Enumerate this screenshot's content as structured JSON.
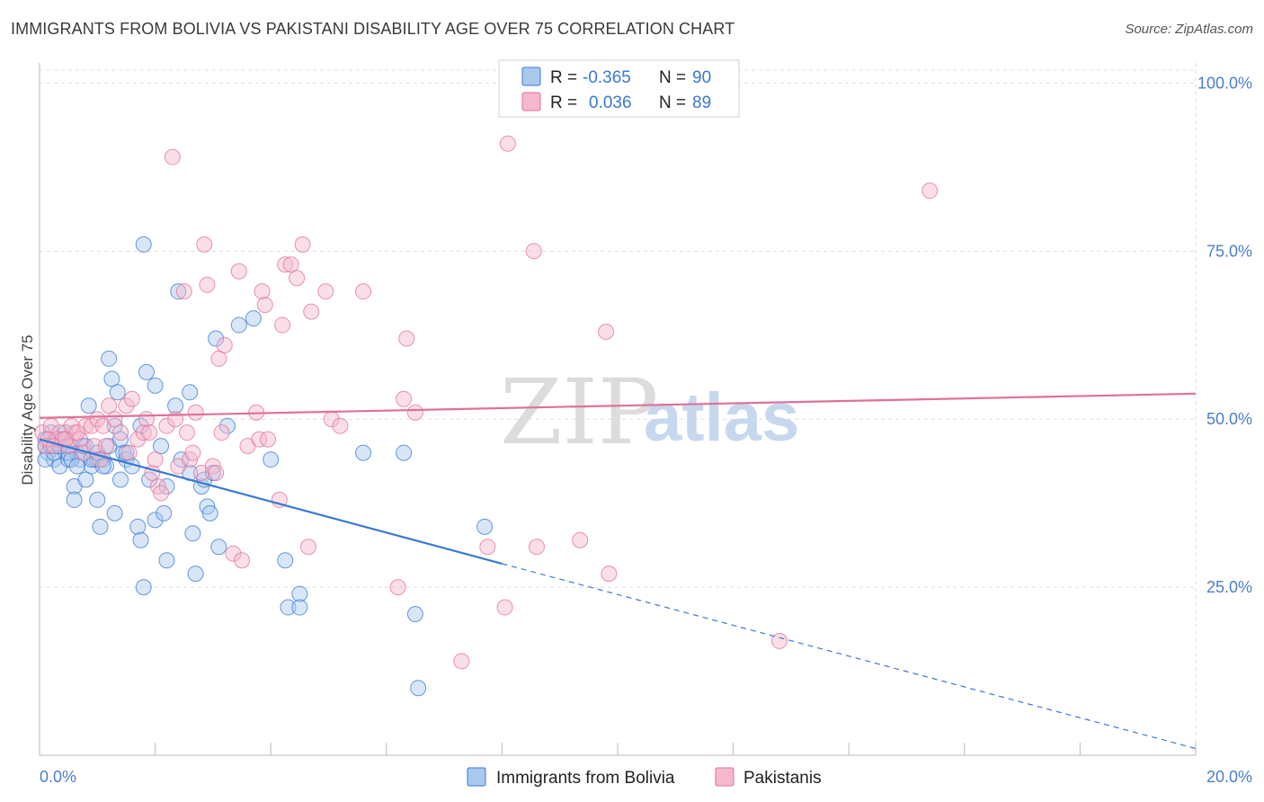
{
  "title": "IMMIGRANTS FROM BOLIVIA VS PAKISTANI DISABILITY AGE OVER 75 CORRELATION CHART",
  "source": "Source: ZipAtlas.com",
  "watermark": {
    "zip": "ZIP",
    "atlas": "atlas"
  },
  "legend_top": [
    {
      "r_label": "R =",
      "r_value": "-0.365",
      "n_label": "N =",
      "n_value": "90",
      "color": "#a9c8ee"
    },
    {
      "r_label": "R =",
      "r_value": "0.036",
      "n_label": "N =",
      "n_value": "89",
      "color": "#f5b8cc"
    }
  ],
  "chart_data": {
    "type": "scatter",
    "title": "IMMIGRANTS FROM BOLIVIA VS PAKISTANI DISABILITY AGE OVER 75 CORRELATION CHART",
    "xlabel": "",
    "ylabel": "Disability Age Over 75",
    "xlim": [
      0,
      20
    ],
    "ylim": [
      0,
      103
    ],
    "x_tick_labels": [
      "0.0%",
      "20.0%"
    ],
    "y_tick_labels": [
      "25.0%",
      "50.0%",
      "75.0%",
      "100.0%"
    ],
    "y_ticks": [
      25,
      50,
      75,
      100
    ],
    "grid": true,
    "legend": "top-center and bottom",
    "series": [
      {
        "name": "Immigrants from Bolivia",
        "color": "#3a78d0",
        "fill": "#a9c8ee",
        "trend": {
          "x0": 0.0,
          "y0": 47.0,
          "x1": 8.0,
          "y1": 28.5,
          "dashed_to_x": 20.0,
          "dashed_to_y": 1.0
        },
        "points": [
          [
            0.1,
            47
          ],
          [
            0.1,
            46
          ],
          [
            0.15,
            45
          ],
          [
            0.2,
            48
          ],
          [
            0.25,
            44
          ],
          [
            0.3,
            46
          ],
          [
            0.35,
            43
          ],
          [
            0.4,
            47
          ],
          [
            0.45,
            45
          ],
          [
            0.5,
            44
          ],
          [
            0.55,
            46
          ],
          [
            0.6,
            40
          ],
          [
            0.6,
            38
          ],
          [
            0.65,
            45
          ],
          [
            0.7,
            44
          ],
          [
            0.75,
            46
          ],
          [
            0.8,
            41
          ],
          [
            0.85,
            52
          ],
          [
            0.9,
            43
          ],
          [
            0.95,
            44
          ],
          [
            1.0,
            44
          ],
          [
            1.0,
            38
          ],
          [
            1.05,
            34
          ],
          [
            1.1,
            44
          ],
          [
            1.15,
            43
          ],
          [
            1.2,
            59
          ],
          [
            1.25,
            56
          ],
          [
            1.3,
            49
          ],
          [
            1.3,
            36
          ],
          [
            1.35,
            54
          ],
          [
            1.4,
            41
          ],
          [
            1.45,
            45
          ],
          [
            1.5,
            44
          ],
          [
            1.6,
            43
          ],
          [
            1.7,
            34
          ],
          [
            1.75,
            49
          ],
          [
            1.75,
            32
          ],
          [
            1.8,
            25
          ],
          [
            1.8,
            76
          ],
          [
            1.85,
            57
          ],
          [
            1.9,
            41
          ],
          [
            2.0,
            55
          ],
          [
            2.0,
            35
          ],
          [
            2.1,
            46
          ],
          [
            2.15,
            36
          ],
          [
            2.2,
            29
          ],
          [
            2.2,
            40
          ],
          [
            2.35,
            52
          ],
          [
            2.4,
            69
          ],
          [
            2.45,
            44
          ],
          [
            2.6,
            42
          ],
          [
            2.6,
            54
          ],
          [
            2.65,
            33
          ],
          [
            2.7,
            27
          ],
          [
            2.8,
            40
          ],
          [
            2.85,
            41
          ],
          [
            2.9,
            37
          ],
          [
            2.95,
            36
          ],
          [
            3.0,
            42
          ],
          [
            3.05,
            62
          ],
          [
            3.1,
            31
          ],
          [
            3.25,
            49
          ],
          [
            3.45,
            64
          ],
          [
            3.7,
            65
          ],
          [
            4.0,
            44
          ],
          [
            4.25,
            29
          ],
          [
            4.3,
            22
          ],
          [
            4.5,
            24
          ],
          [
            4.5,
            22
          ],
          [
            5.6,
            45
          ],
          [
            6.3,
            45
          ],
          [
            6.5,
            21
          ],
          [
            6.55,
            10
          ],
          [
            7.7,
            34
          ],
          [
            0.1,
            44
          ],
          [
            0.2,
            46
          ],
          [
            0.3,
            47
          ],
          [
            0.45,
            48
          ],
          [
            0.5,
            45
          ],
          [
            0.8,
            46
          ],
          [
            0.9,
            44
          ],
          [
            1.0,
            45
          ],
          [
            1.1,
            43
          ],
          [
            1.2,
            46
          ],
          [
            1.4,
            47
          ],
          [
            1.5,
            45
          ],
          [
            0.25,
            45
          ],
          [
            0.35,
            46
          ],
          [
            0.55,
            44
          ],
          [
            0.65,
            43
          ]
        ]
      },
      {
        "name": "Pakistanis",
        "color": "#e0709a",
        "fill": "#f5b8cc",
        "trend": {
          "x0": 0.0,
          "y0": 50.2,
          "x1": 20.0,
          "y1": 53.8
        },
        "points": [
          [
            0.05,
            48
          ],
          [
            0.1,
            46
          ],
          [
            0.2,
            49
          ],
          [
            0.3,
            47
          ],
          [
            0.35,
            48
          ],
          [
            0.4,
            47
          ],
          [
            0.5,
            46
          ],
          [
            0.6,
            48
          ],
          [
            0.7,
            47
          ],
          [
            0.75,
            45
          ],
          [
            0.8,
            49
          ],
          [
            0.9,
            49
          ],
          [
            0.95,
            46
          ],
          [
            1.0,
            50
          ],
          [
            1.05,
            44
          ],
          [
            1.1,
            49
          ],
          [
            1.15,
            46
          ],
          [
            1.2,
            52
          ],
          [
            1.3,
            50
          ],
          [
            1.4,
            48
          ],
          [
            1.5,
            52
          ],
          [
            1.55,
            45
          ],
          [
            1.6,
            53
          ],
          [
            1.7,
            47
          ],
          [
            1.8,
            48
          ],
          [
            1.85,
            50
          ],
          [
            1.9,
            48
          ],
          [
            1.95,
            42
          ],
          [
            2.0,
            44
          ],
          [
            2.05,
            40
          ],
          [
            2.1,
            39
          ],
          [
            2.2,
            49
          ],
          [
            2.3,
            89
          ],
          [
            2.35,
            50
          ],
          [
            2.4,
            43
          ],
          [
            2.5,
            69
          ],
          [
            2.55,
            48
          ],
          [
            2.6,
            44
          ],
          [
            2.65,
            45
          ],
          [
            2.7,
            51
          ],
          [
            2.8,
            42
          ],
          [
            2.85,
            76
          ],
          [
            2.9,
            70
          ],
          [
            3.0,
            43
          ],
          [
            3.05,
            42
          ],
          [
            3.1,
            59
          ],
          [
            3.15,
            48
          ],
          [
            3.2,
            61
          ],
          [
            3.35,
            30
          ],
          [
            3.45,
            72
          ],
          [
            3.5,
            29
          ],
          [
            3.6,
            46
          ],
          [
            3.75,
            51
          ],
          [
            3.8,
            47
          ],
          [
            3.85,
            69
          ],
          [
            3.9,
            67
          ],
          [
            3.95,
            47
          ],
          [
            4.15,
            38
          ],
          [
            4.2,
            64
          ],
          [
            4.25,
            73
          ],
          [
            4.35,
            73
          ],
          [
            4.45,
            71
          ],
          [
            4.55,
            76
          ],
          [
            4.65,
            31
          ],
          [
            4.7,
            66
          ],
          [
            4.95,
            69
          ],
          [
            5.05,
            50
          ],
          [
            5.2,
            49
          ],
          [
            5.6,
            69
          ],
          [
            6.2,
            25
          ],
          [
            6.3,
            53
          ],
          [
            6.35,
            62
          ],
          [
            6.5,
            51
          ],
          [
            7.3,
            14
          ],
          [
            7.75,
            31
          ],
          [
            8.05,
            22
          ],
          [
            8.1,
            91
          ],
          [
            8.55,
            75
          ],
          [
            8.6,
            31
          ],
          [
            9.35,
            32
          ],
          [
            9.8,
            63
          ],
          [
            9.85,
            27
          ],
          [
            12.8,
            17
          ],
          [
            15.4,
            84
          ],
          [
            0.15,
            47
          ],
          [
            0.25,
            46
          ],
          [
            0.45,
            47
          ],
          [
            0.55,
            49
          ],
          [
            0.65,
            48
          ]
        ]
      }
    ]
  },
  "bottom_legend": [
    {
      "label": "Immigrants from Bolivia",
      "color": "#a9c8ee",
      "stroke": "#3a78d0"
    },
    {
      "label": "Pakistanis",
      "color": "#f5b8cc",
      "stroke": "#e0709a"
    }
  ]
}
